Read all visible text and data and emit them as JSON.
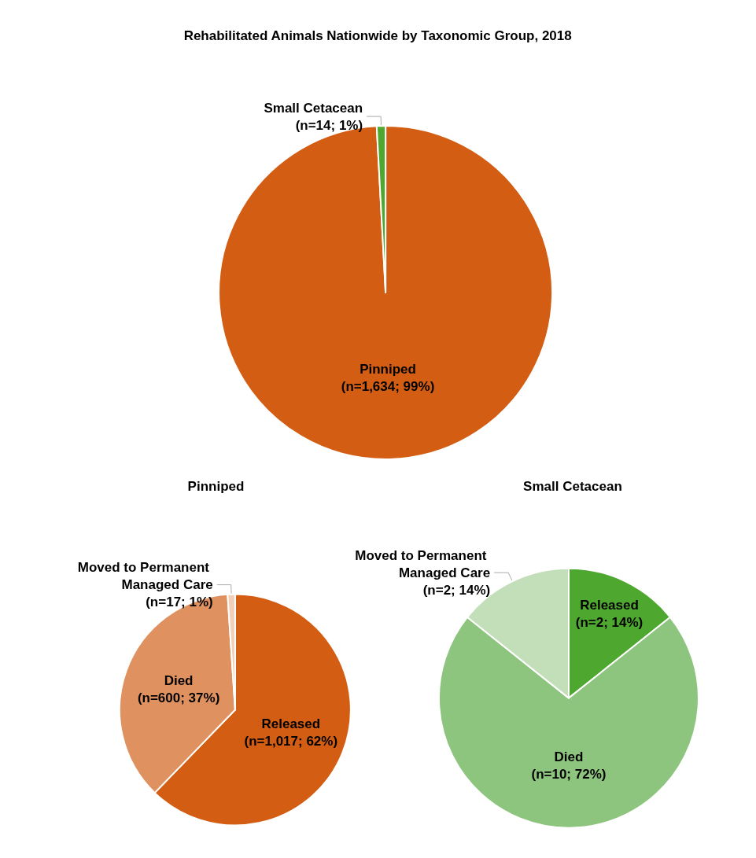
{
  "chart_data": [
    {
      "type": "pie",
      "title": "Rehabilitated Animals Nationwide by Taxonomic Group, 2018",
      "categories": [
        "Pinniped",
        "Small Cetacean"
      ],
      "values": [
        1634,
        14
      ],
      "colors": [
        "#d35d13",
        "#4ea72e"
      ],
      "value_labels": [
        "(n=1,634; 99%)",
        "(n=14; 1%)"
      ]
    },
    {
      "type": "pie",
      "title": "Pinniped",
      "categories": [
        "Released",
        "Died",
        "Moved to Permanent Managed Care"
      ],
      "values": [
        1017,
        600,
        17
      ],
      "colors": [
        "#d35d13",
        "#e09160",
        "#f2cfb8"
      ],
      "value_labels": [
        "(n=1,017; 62%)",
        "(n=600; 37%)",
        "(n=17; 1%)"
      ]
    },
    {
      "type": "pie",
      "title": "Small Cetacean",
      "categories": [
        "Released",
        "Died",
        "Moved to Permanent Managed Care"
      ],
      "values": [
        2,
        10,
        2
      ],
      "colors": [
        "#4ea72e",
        "#8dc47e",
        "#c3dfb9"
      ],
      "value_labels": [
        "(n=2; 14%)",
        "(n=10; 72%)",
        "(n=2; 14%)"
      ]
    }
  ]
}
